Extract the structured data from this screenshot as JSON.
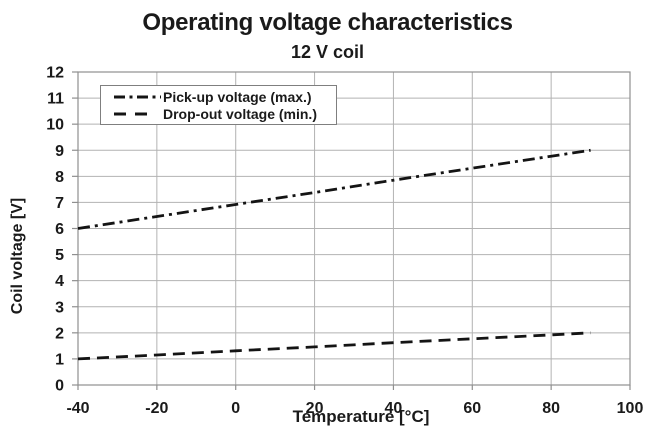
{
  "chart_data": {
    "type": "line",
    "title": "Operating voltage characteristics",
    "subtitle": "12 V coil",
    "xlabel": "Temperature [°C]",
    "ylabel": "Coil voltage [V]",
    "xlim": [
      -40,
      100
    ],
    "ylim": [
      0,
      12
    ],
    "xticks": [
      -40,
      -20,
      0,
      20,
      40,
      60,
      80,
      100
    ],
    "yticks": [
      0,
      1,
      2,
      3,
      4,
      5,
      6,
      7,
      8,
      9,
      10,
      11,
      12
    ],
    "grid": true,
    "legend_position": "top-left-inside",
    "series": [
      {
        "name": "Pick-up voltage (max.)",
        "style": "dash-dot",
        "color": "#141414",
        "x": [
          -40,
          -20,
          0,
          20,
          40,
          60,
          80,
          90
        ],
        "values": [
          6.0,
          6.46,
          6.92,
          7.38,
          7.85,
          8.31,
          8.77,
          9.0
        ]
      },
      {
        "name": "Drop-out voltage (min.)",
        "style": "dashed",
        "color": "#141414",
        "x": [
          -40,
          -20,
          0,
          20,
          40,
          60,
          80,
          90
        ],
        "values": [
          1.0,
          1.15,
          1.31,
          1.46,
          1.62,
          1.77,
          1.92,
          2.0
        ]
      }
    ]
  },
  "colors": {
    "text": "#1a1a1a",
    "gridline": "#b2b2b2",
    "axis_border": "#8f8f8f",
    "tick": "#8f8f8f",
    "legend_border": "#7f7f7f",
    "background": "#ffffff"
  }
}
